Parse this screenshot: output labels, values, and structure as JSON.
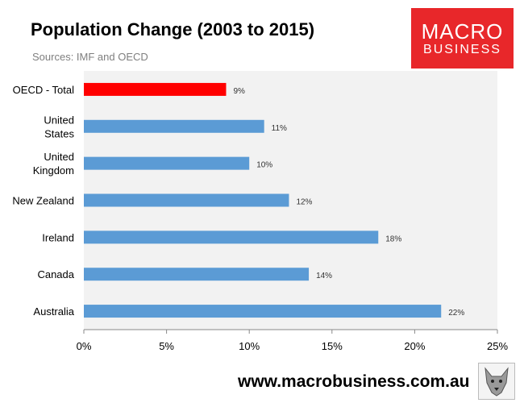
{
  "header": {
    "title": "Population Change (2003 to 2015)",
    "subtitle": "Sources: IMF and OECD"
  },
  "logo": {
    "line1": "MACRO",
    "line2": "BUSINESS",
    "color": "#e8272a"
  },
  "footer": {
    "url": "www.macrobusiness.com.au"
  },
  "colors": {
    "highlight": "#ff0000",
    "bar": "#5b9bd5",
    "plot_bg": "#f2f2f2"
  },
  "chart_data": {
    "type": "bar",
    "orientation": "horizontal",
    "title": "Population Change (2003 to 2015)",
    "subtitle": "Sources: IMF and OECD",
    "categories": [
      "OECD - Total",
      "United States",
      "United Kingdom",
      "New Zealand",
      "Ireland",
      "Canada",
      "Australia"
    ],
    "category_lines": [
      [
        "OECD - Total"
      ],
      [
        "United",
        "States"
      ],
      [
        "United",
        "Kingdom"
      ],
      [
        "New Zealand"
      ],
      [
        "Ireland"
      ],
      [
        "Canada"
      ],
      [
        "Australia"
      ]
    ],
    "values": [
      8.6,
      10.9,
      10.0,
      12.4,
      17.8,
      13.6,
      21.6
    ],
    "data_labels": [
      "9%",
      "11%",
      "10%",
      "12%",
      "18%",
      "14%",
      "22%"
    ],
    "highlight_index": 0,
    "xlim": [
      0,
      25
    ],
    "xticks": [
      0,
      5,
      10,
      15,
      20,
      25
    ],
    "xtick_labels": [
      "0%",
      "5%",
      "10%",
      "15%",
      "20%",
      "25%"
    ],
    "grid": false,
    "legend": "none"
  }
}
